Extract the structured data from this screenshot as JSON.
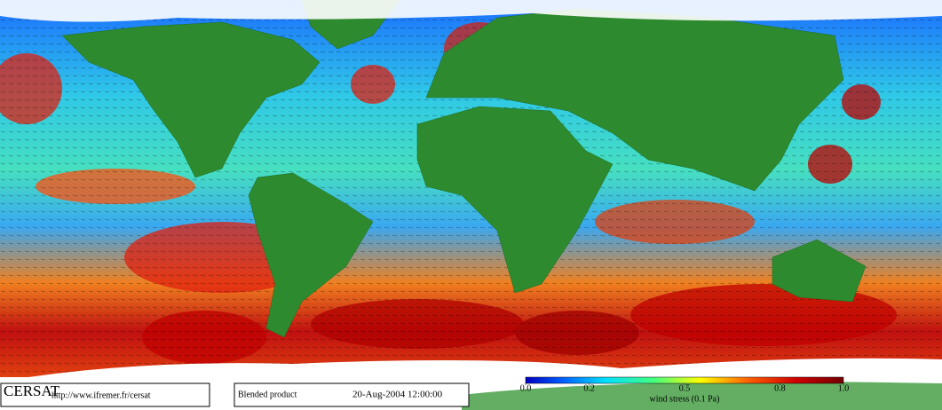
{
  "footer": {
    "logo": "CERSAT",
    "url": "http://www.ifremer.fr/cersat",
    "product": "Blended product",
    "date": "20-Aug-2004 12:00:00"
  },
  "colorbar": {
    "label": "wind stress (0.1 Pa)",
    "lim": [
      0,
      1
    ],
    "ticks": [
      {
        "value": 0,
        "label": "0.0"
      },
      0.2,
      0.5,
      0.8,
      {
        "value": 1,
        "label": "1.0"
      }
    ]
  }
}
